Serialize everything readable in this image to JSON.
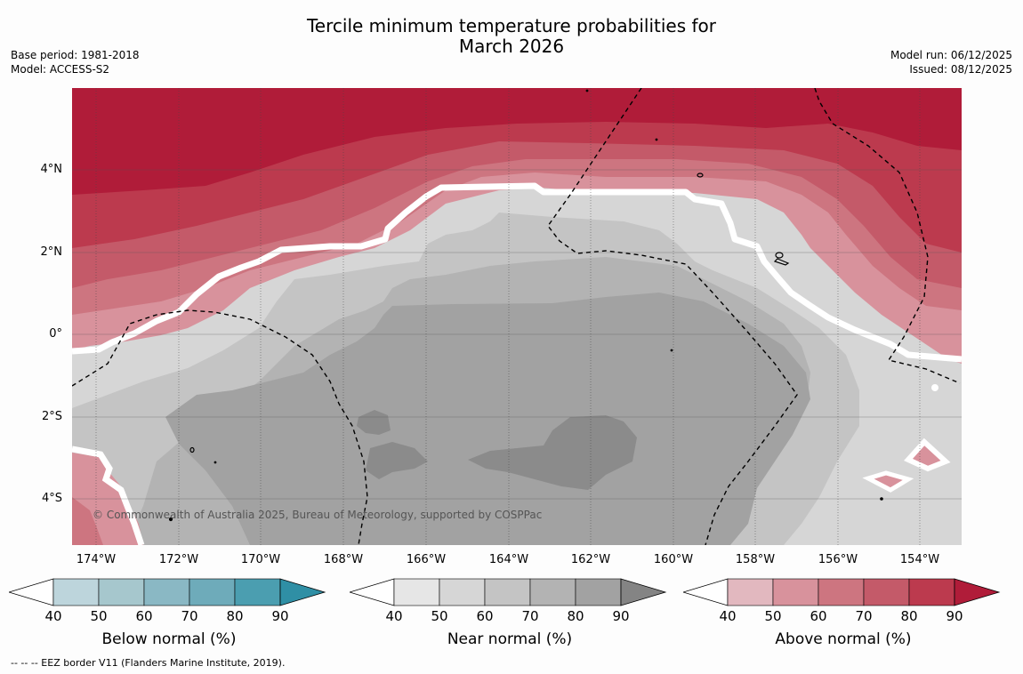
{
  "title_line1": "Tercile minimum temperature probabilities for",
  "title_line2": "March 2026",
  "base_period": "Base period: 1981-2018",
  "model": "Model: ACCESS-S2",
  "model_run": "Model run: 06/12/2025",
  "issued": "Issued: 08/12/2025",
  "copyright": "© Commonwealth of Australia 2025, Bureau of Meteorology, supported by COSPPac",
  "footnote": "--  --  -- EEZ border V11 (Flanders Marine Institute, 2019).",
  "lat_labels": [
    "4°N",
    "2°N",
    "0°",
    "2°S",
    "4°S"
  ],
  "lon_labels": [
    "174°W",
    "172°W",
    "170°W",
    "168°W",
    "166°W",
    "164°W",
    "162°W",
    "160°W",
    "158°W",
    "156°W",
    "154°W"
  ],
  "colorbars": [
    {
      "title": "Below normal (%)",
      "ticks": [
        "40",
        "50",
        "60",
        "70",
        "80",
        "90"
      ],
      "colors": [
        "#ffffff",
        "#bdd5dc",
        "#a6c7cd",
        "#8ab8c4",
        "#6eabba",
        "#4b9eb0",
        "#2f8fa5"
      ]
    },
    {
      "title": "Near normal (%)",
      "ticks": [
        "40",
        "50",
        "60",
        "70",
        "80",
        "90"
      ],
      "colors": [
        "#ffffff",
        "#e6e6e6",
        "#d6d6d6",
        "#c4c4c4",
        "#b3b3b3",
        "#a2a2a2",
        "#848484"
      ]
    },
    {
      "title": "Above normal (%)",
      "ticks": [
        "40",
        "50",
        "60",
        "70",
        "80",
        "90"
      ],
      "colors": [
        "#ffffff",
        "#e2b8bf",
        "#d8929c",
        "#cd7580",
        "#c45a69",
        "#bc3a4e",
        "#b01c39"
      ]
    }
  ]
}
